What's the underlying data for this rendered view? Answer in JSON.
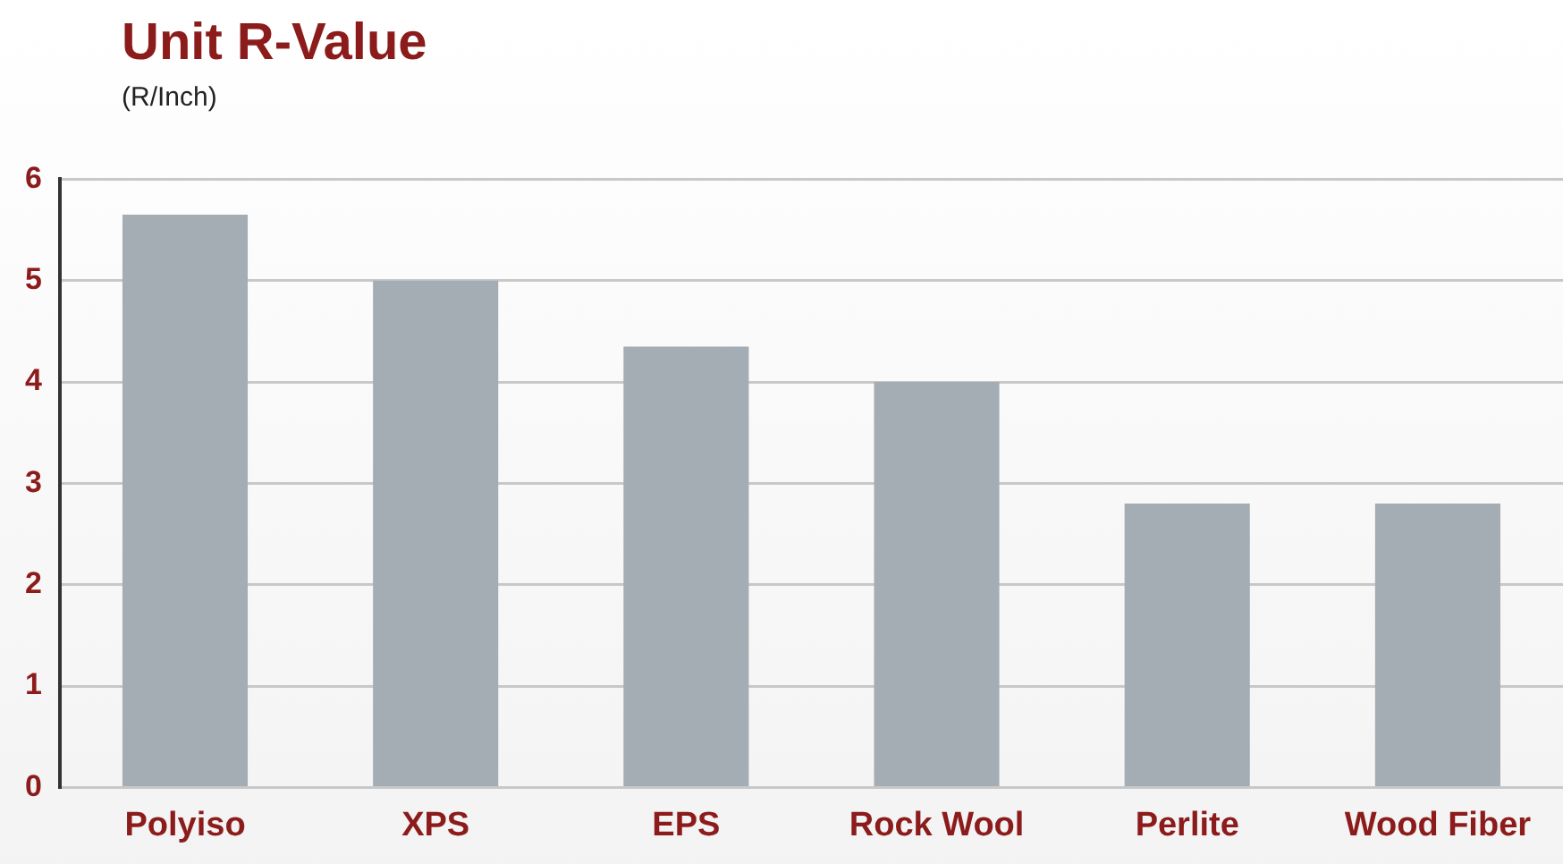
{
  "chart_data": {
    "type": "bar",
    "title": "Unit R-Value",
    "subtitle": "(R/Inch)",
    "categories": [
      "Polyiso",
      "XPS",
      "EPS",
      "Rock Wool",
      "Perlite",
      "Wood Fiber"
    ],
    "values": [
      5.65,
      5.0,
      4.35,
      4.0,
      2.8,
      2.8
    ],
    "color": "#a4adb3",
    "ylim": [
      0,
      6
    ],
    "yticks": [
      0,
      1,
      2,
      3,
      4,
      5,
      6
    ],
    "grid": "y"
  }
}
